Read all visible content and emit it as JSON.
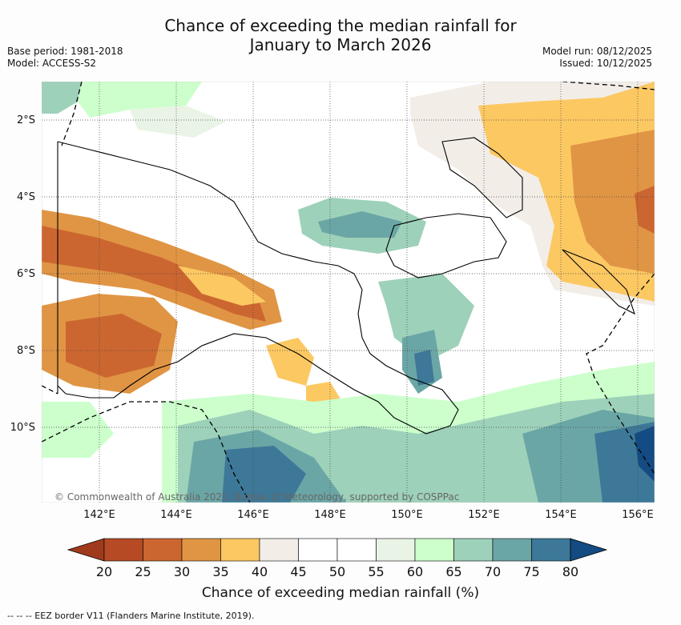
{
  "title": {
    "line1": "Chance of exceeding the median rainfall for",
    "line2": "January to March 2026"
  },
  "meta": {
    "base_period": "Base period: 1981-2018",
    "model": "Model: ACCESS-S2",
    "model_run": "Model run: 08/12/2025",
    "issued": "Issued: 10/12/2025"
  },
  "map": {
    "lat_labels": [
      "2°S",
      "4°S",
      "6°S",
      "8°S",
      "10°S"
    ],
    "lon_labels": [
      "142°E",
      "144°E",
      "146°E",
      "148°E",
      "150°E",
      "152°E",
      "154°E",
      "156°E"
    ],
    "copyright": "© Commonwealth of Australia 2025, Bureau of Meteorology, supported by COSPPac"
  },
  "colorbar": {
    "title": "Chance of exceeding median rainfall (%)",
    "ticks": [
      "20",
      "25",
      "30",
      "35",
      "40",
      "45",
      "50",
      "55",
      "60",
      "65",
      "70",
      "75",
      "80"
    ],
    "colors": [
      "#b54a24",
      "#cc6630",
      "#e09544",
      "#fcc862",
      "#f2ede7",
      "#ffffff",
      "#ffffff",
      "#eaf4e6",
      "#ccffcc",
      "#9ed1ba",
      "#6ba6a6",
      "#3d7898"
    ],
    "low_color": "#a03a1c",
    "high_color": "#134b82"
  },
  "footer": {
    "eez": "-- -- -- EEZ border V11 (Flanders Marine Institute, 2019)."
  }
}
